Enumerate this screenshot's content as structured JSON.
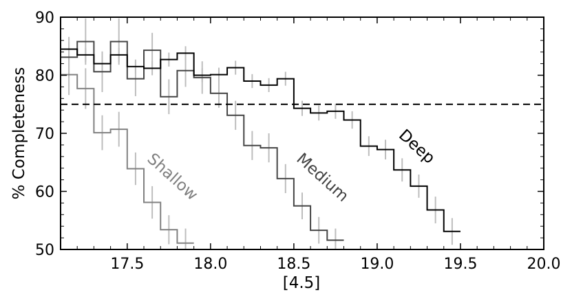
{
  "chart_data": {
    "type": "line",
    "xlabel": "[4.5]",
    "ylabel": "% Completeness",
    "xlim": [
      17.1,
      20.0
    ],
    "ylim": [
      50,
      90
    ],
    "xticks": [
      "17.5",
      "18.0",
      "18.5",
      "19.0",
      "19.5",
      "20.0"
    ],
    "yticks": [
      "50",
      "60",
      "70",
      "80",
      "90"
    ],
    "reference_line": {
      "y": 75,
      "style": "dashed"
    },
    "series": [
      {
        "name": "Deep",
        "color": "#000000",
        "bin_edges": [
          17.1,
          17.2,
          17.3,
          17.4,
          17.5,
          17.6,
          17.7,
          17.8,
          17.9,
          18.0,
          18.1,
          18.2,
          18.3,
          18.4,
          18.5,
          18.6,
          18.7,
          18.8,
          18.9,
          19.0,
          19.1,
          19.2,
          19.3,
          19.4,
          19.5
        ],
        "values": [
          84.5,
          83.5,
          82.0,
          83.5,
          81.5,
          81.2,
          82.7,
          83.8,
          80.0,
          80.1,
          81.3,
          79.0,
          78.3,
          79.4,
          74.3,
          73.5,
          73.8,
          72.3,
          67.8,
          67.2,
          63.7,
          60.9,
          56.8,
          53.1
        ],
        "errors": [
          1.2,
          1.2,
          1.2,
          1.2,
          1.2,
          1.2,
          1.2,
          1.2,
          1.2,
          1.2,
          1.2,
          1.2,
          1.2,
          1.2,
          1.3,
          1.3,
          1.3,
          1.5,
          1.7,
          1.7,
          2.0,
          2.0,
          2.3,
          2.3
        ]
      },
      {
        "name": "Medium",
        "color": "#444444",
        "bin_edges": [
          17.1,
          17.2,
          17.3,
          17.4,
          17.5,
          17.6,
          17.7,
          17.8,
          17.9,
          18.0,
          18.1,
          18.2,
          18.3,
          18.4,
          18.5,
          18.6,
          18.7,
          18.8
        ],
        "values": [
          83.1,
          85.8,
          80.6,
          85.8,
          79.4,
          84.3,
          76.3,
          80.8,
          79.6,
          76.9,
          73.1,
          67.9,
          67.5,
          62.2,
          57.5,
          53.3,
          51.6
        ],
        "errors": [
          3.5,
          4.0,
          3.5,
          4.0,
          3.0,
          3.0,
          3.0,
          2.8,
          2.8,
          2.5,
          2.5,
          2.5,
          2.5,
          2.5,
          2.3,
          2.3,
          2.0
        ]
      },
      {
        "name": "Shallow",
        "color": "#808080",
        "bin_edges": [
          17.1,
          17.2,
          17.3,
          17.4,
          17.5,
          17.6,
          17.7,
          17.8,
          17.9
        ],
        "values": [
          80.1,
          77.7,
          70.1,
          70.7,
          63.9,
          58.1,
          53.4,
          51.1
        ],
        "errors": [
          3.5,
          3.5,
          3.0,
          3.0,
          2.8,
          2.8,
          2.5,
          2.5
        ]
      }
    ]
  }
}
